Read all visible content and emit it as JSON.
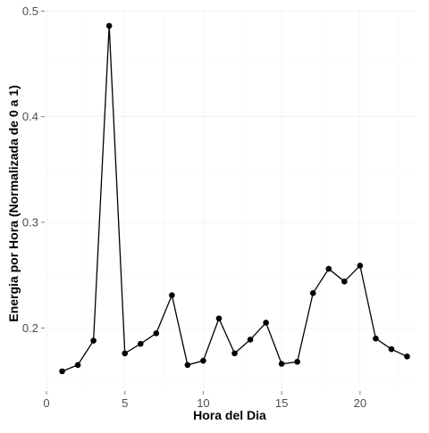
{
  "chart_data": {
    "type": "line",
    "title": "",
    "xlabel": "Hora del Dia",
    "ylabel": "Energia por Hora (Normalizada de 0 a 1)",
    "xlim": [
      0,
      23.6
    ],
    "ylim": [
      0.142,
      0.502
    ],
    "xticks": [
      0,
      5,
      10,
      15,
      20
    ],
    "xtick_labels": [
      "0",
      "5",
      "10",
      "15",
      "20"
    ],
    "yticks": [
      0.2,
      0.3,
      0.4,
      0.5
    ],
    "ytick_labels": [
      "0.2",
      "0.3",
      "0.4",
      "0.5"
    ],
    "grid": true,
    "legend": "none",
    "colors": {
      "line": "#000000",
      "point": "#000000",
      "grid": "#ebebeb",
      "tick": "#7f7f7f",
      "tick_label": "#4d4d4d"
    },
    "series": [
      {
        "x": [
          1,
          2,
          3,
          4,
          5,
          6,
          7,
          8,
          9,
          10,
          11,
          12,
          13,
          14,
          15,
          16,
          17,
          18,
          19,
          20,
          21,
          22,
          23
        ],
        "values": [
          0.159,
          0.165,
          0.188,
          0.486,
          0.176,
          0.185,
          0.195,
          0.231,
          0.165,
          0.169,
          0.209,
          0.176,
          0.189,
          0.205,
          0.166,
          0.168,
          0.233,
          0.256,
          0.244,
          0.259,
          0.19,
          0.18,
          0.173
        ]
      }
    ]
  }
}
